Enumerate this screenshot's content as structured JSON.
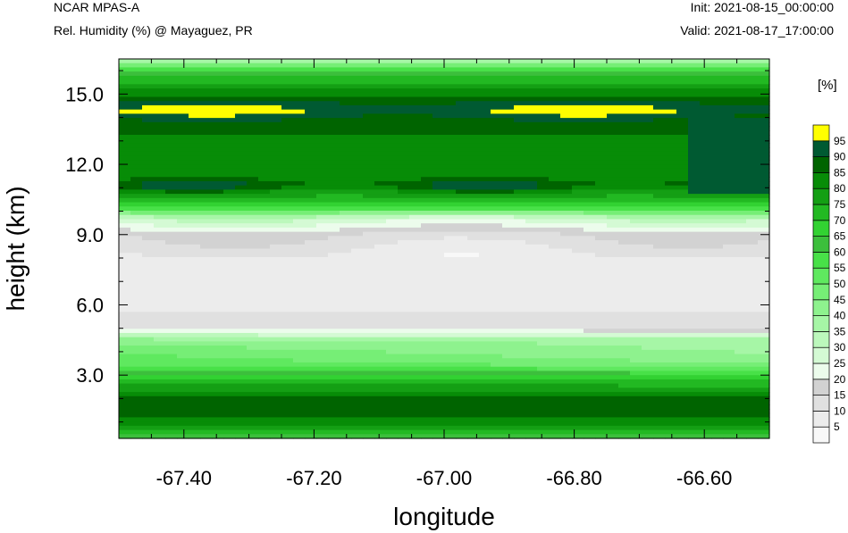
{
  "header": {
    "model": "NCAR MPAS-A",
    "field": "Rel. Humidity (%) @ Mayaguez, PR",
    "init": "Init: 2021-08-15_00:00:00",
    "valid": "Valid: 2021-08-17_17:00:00"
  },
  "chart_data": {
    "type": "heatmap",
    "title": "Rel. Humidity (%) @ Mayaguez, PR",
    "xlabel": "longitude",
    "ylabel": "height (km)",
    "xlim": [
      -67.5,
      -66.5
    ],
    "ylim": [
      0.3,
      16.5
    ],
    "xticks": [
      "-67.40",
      "-67.20",
      "-67.00",
      "-66.80",
      "-66.60"
    ],
    "xtick_values": [
      -67.4,
      -67.2,
      -67.0,
      -66.8,
      -66.6
    ],
    "yticks": [
      "3.0",
      "6.0",
      "9.0",
      "12.0",
      "15.0"
    ],
    "ytick_values": [
      3.0,
      6.0,
      9.0,
      12.0,
      15.0
    ],
    "colorbar": {
      "unit": "[%]",
      "levels": [
        "5",
        "10",
        "15",
        "20",
        "25",
        "30",
        "35",
        "40",
        "45",
        "50",
        "55",
        "60",
        "65",
        "70",
        "75",
        "80",
        "85",
        "90",
        "95"
      ],
      "colors": [
        "#f8f8f8",
        "#ececec",
        "#e0e0e0",
        "#d2d2d2",
        "#ecfcec",
        "#d4fad4",
        "#bcf8bc",
        "#a6f6a6",
        "#8ef28e",
        "#76ee76",
        "#5fe95f",
        "#48e148",
        "#3cbf3c",
        "#32d232",
        "#22b922",
        "#149f14",
        "#078c07",
        "#006400",
        "#005a32",
        "#ffff00"
      ]
    },
    "profile": {
      "height_km": [
        0.3,
        0.6,
        1.2,
        2.0,
        2.8,
        3.5,
        4.5,
        5.0,
        6.5,
        8.0,
        9.0,
        9.7,
        10.1,
        10.4,
        10.8,
        11.1,
        11.5,
        12.5,
        13.3,
        13.8,
        14.3,
        14.8,
        15.2,
        15.7,
        16.2,
        16.5
      ],
      "rh_pct": [
        55,
        75,
        85,
        87,
        70,
        50,
        40,
        15,
        5,
        8,
        15,
        30,
        55,
        72,
        80,
        90,
        82,
        80,
        85,
        88,
        96,
        88,
        80,
        70,
        50,
        35
      ]
    }
  }
}
